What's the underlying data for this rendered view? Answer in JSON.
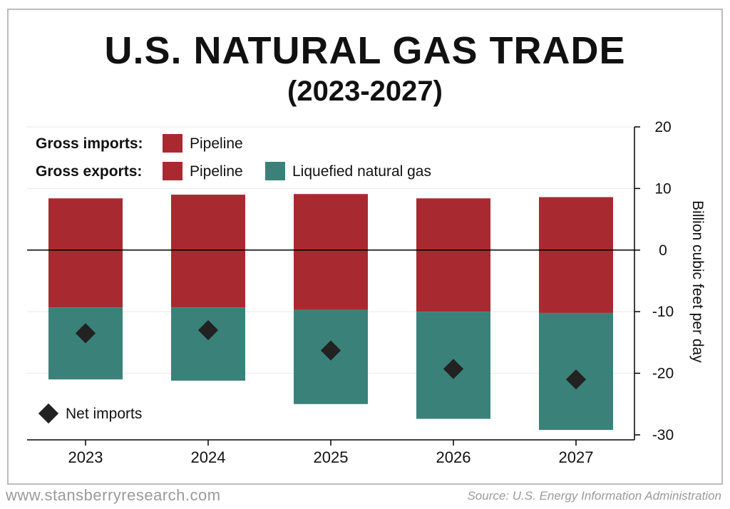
{
  "header": {
    "title": "U.S. NATURAL GAS TRADE",
    "subtitle": "(2023-2027)"
  },
  "legend": {
    "imports_label": "Gross imports:",
    "exports_label": "Gross exports:",
    "pipeline_label": "Pipeline",
    "lng_label": "Liquefied natural gas",
    "net_imports_label": "Net imports"
  },
  "footer": {
    "website": "www.stansberryresearch.com",
    "source": "Source: U.S. Energy Information Administration"
  },
  "colors": {
    "pipeline": "#a82a30",
    "lng": "#3a8279",
    "net_imports": "#222222",
    "zero_line": "#000000",
    "grid": "#e8e8e8"
  },
  "chart_data": {
    "type": "bar",
    "categories": [
      "2023",
      "2024",
      "2025",
      "2026",
      "2027"
    ],
    "ylabel": "Billion cubic feet per day",
    "ylim": [
      -30,
      20
    ],
    "yticks": [
      20,
      10,
      0,
      -10,
      -20,
      -30
    ],
    "grid": true,
    "series": [
      {
        "name": "Pipeline",
        "values": [
          8.4,
          9.0,
          9.1,
          8.4,
          8.6
        ]
      },
      {
        "name": "Pipeline",
        "values": [
          -9.3,
          -9.3,
          -9.7,
          -10.0,
          -10.2
        ]
      },
      {
        "name": "Liquefied natural gas",
        "values": [
          -11.7,
          -11.9,
          -15.3,
          -17.4,
          -19.0
        ]
      },
      {
        "name": "Net imports",
        "values": [
          -13.5,
          -13.0,
          -16.3,
          -19.3,
          -21.0
        ]
      }
    ]
  }
}
